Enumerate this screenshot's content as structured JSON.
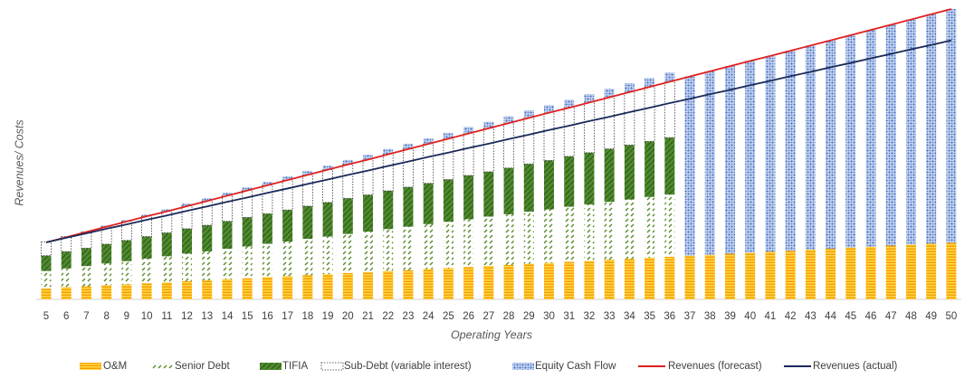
{
  "chart_data": {
    "type": "bar",
    "stacked": true,
    "x_label": "Operating Years",
    "y_label": "Revenues/ Costs",
    "categories": [
      5,
      6,
      7,
      8,
      9,
      10,
      11,
      12,
      13,
      14,
      15,
      16,
      17,
      18,
      19,
      20,
      21,
      22,
      23,
      24,
      25,
      26,
      27,
      28,
      29,
      30,
      31,
      32,
      33,
      34,
      35,
      36,
      37,
      38,
      39,
      40,
      41,
      42,
      43,
      44,
      45,
      46,
      47,
      48,
      49,
      50
    ],
    "ylim": [
      0,
      103
    ],
    "series": [
      {
        "name": "O&M",
        "color": "#f5a000",
        "pattern": "horizontal-stripes",
        "values": [
          3.8,
          4.2,
          4.5,
          4.9,
          5.2,
          5.6,
          5.9,
          6.3,
          6.6,
          7.0,
          7.3,
          7.7,
          8.0,
          8.4,
          8.7,
          9.1,
          9.4,
          9.8,
          10.1,
          10.5,
          10.8,
          11.2,
          11.6,
          11.9,
          12.3,
          12.6,
          13.0,
          13.3,
          13.7,
          14.0,
          14.4,
          14.7,
          15.1,
          15.4,
          15.8,
          16.1,
          16.5,
          16.8,
          17.2,
          17.5,
          17.9,
          18.2,
          18.6,
          18.9,
          19.3,
          19.6
        ]
      },
      {
        "name": "Senior Debt",
        "color": "#5a8a2a",
        "pattern": "diagonal-dashes",
        "values": [
          6,
          6.5,
          7,
          7.5,
          8,
          8.5,
          9,
          9.5,
          10,
          10.5,
          11,
          11.5,
          12,
          12.5,
          13,
          13.5,
          14,
          14.5,
          15,
          15.5,
          16,
          16.5,
          17,
          17.5,
          18,
          18.5,
          19,
          19.5,
          20,
          20.5,
          21,
          21.5,
          null,
          null,
          null,
          null,
          null,
          null,
          null,
          null,
          null,
          null,
          null,
          null,
          null,
          null
        ]
      },
      {
        "name": "TIFIA",
        "color": "#4e8a2e",
        "pattern": "diagonal-solid",
        "values": [
          5.3,
          5.8,
          6.2,
          6.7,
          7.2,
          7.6,
          8.1,
          8.6,
          9.0,
          9.5,
          10.0,
          10.4,
          10.9,
          11.3,
          11.8,
          12.3,
          12.7,
          13.2,
          13.7,
          14.1,
          14.6,
          15.1,
          15.5,
          16.0,
          16.5,
          16.9,
          17.4,
          17.9,
          18.3,
          18.8,
          19.2,
          19.7,
          null,
          null,
          null,
          null,
          null,
          null,
          null,
          null,
          null,
          null,
          null,
          null,
          null,
          null
        ]
      },
      {
        "name": "Sub-Debt (variable interest)",
        "color": "#333333",
        "pattern": "dotted-outline",
        "values": [
          4.7,
          5.2,
          5.6,
          6.1,
          6.6,
          7.1,
          7.5,
          8.0,
          8.5,
          9.0,
          9.4,
          9.9,
          10.4,
          10.9,
          11.3,
          11.8,
          12.3,
          12.8,
          13.2,
          13.7,
          14.2,
          14.7,
          15.1,
          15.6,
          16.1,
          16.6,
          17.0,
          17.5,
          18.0,
          18.5,
          18.9,
          19.4,
          null,
          null,
          null,
          null,
          null,
          null,
          null,
          null,
          null,
          null,
          null,
          null,
          null,
          null
        ]
      },
      {
        "name": "Equity Cash Flow",
        "color": "#4a72c4",
        "pattern": "dots",
        "values": [
          0,
          0.1,
          0.2,
          0.3,
          0.4,
          0.5,
          0.6,
          0.7,
          0.8,
          0.9,
          1.0,
          1.1,
          1.2,
          1.3,
          1.4,
          1.5,
          1.6,
          1.7,
          1.8,
          1.9,
          2.0,
          2.1,
          2.2,
          2.3,
          2.4,
          2.5,
          2.6,
          2.7,
          2.8,
          2.9,
          3.0,
          3.1,
          61.9,
          63.4,
          64.8,
          66.3,
          67.6,
          69.1,
          70.5,
          72.0,
          73.4,
          74.9,
          76.3,
          77.8,
          79.2,
          80.7
        ]
      },
      {
        "name": "Revenues (forecast)",
        "type": "line",
        "color": "#e02020",
        "values": [
          19.7,
          21.5,
          23.3,
          25.1,
          26.9,
          28.7,
          30.4,
          32.2,
          34.0,
          35.8,
          37.6,
          39.4,
          41.2,
          43.0,
          44.8,
          46.6,
          48.3,
          50.1,
          51.9,
          53.7,
          55.5,
          57.3,
          59.1,
          60.9,
          62.7,
          64.5,
          66.2,
          68.0,
          69.8,
          71.6,
          73.4,
          75.2,
          77.0,
          78.8,
          80.6,
          82.4,
          84.1,
          85.9,
          87.7,
          89.5,
          91.3,
          93.1,
          94.9,
          96.7,
          98.5,
          100.3
        ]
      },
      {
        "name": "Revenues (actual)",
        "type": "line",
        "color": "#1a2a5a",
        "values": [
          19.7,
          21.3,
          22.8,
          24.4,
          25.9,
          27.5,
          29.0,
          30.6,
          32.1,
          33.7,
          35.2,
          36.8,
          38.3,
          39.9,
          41.4,
          43.0,
          44.5,
          46.1,
          47.6,
          49.2,
          50.7,
          52.3,
          53.8,
          55.4,
          56.9,
          58.5,
          60.0,
          61.6,
          63.1,
          64.7,
          66.2,
          67.8,
          69.3,
          70.9,
          72.4,
          74.0,
          75.5,
          77.1,
          78.6,
          80.2,
          81.7,
          83.3,
          84.8,
          86.4,
          87.9,
          89.5
        ]
      }
    ]
  }
}
